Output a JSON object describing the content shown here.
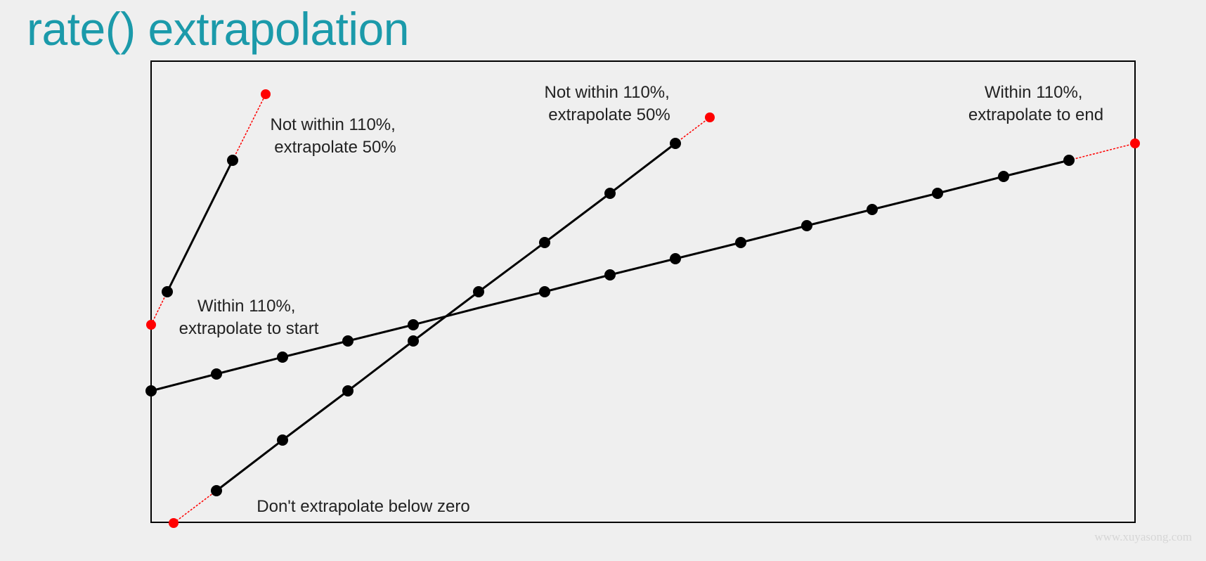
{
  "title": "rate() extrapolation",
  "watermark": "www.xuyasong.com",
  "colors": {
    "title": "#1b9aaa",
    "sample": "#000000",
    "extrapolated": "#ff0000",
    "frame": "#000000",
    "background": "#efefef"
  },
  "annotations": [
    {
      "id": "steep-end",
      "lines": [
        "Not within 110%,",
        "extrapolate 50%"
      ]
    },
    {
      "id": "mid-end",
      "lines": [
        "Not within 110%,",
        "extrapolate 50%"
      ]
    },
    {
      "id": "slow-end",
      "lines": [
        "Within 110%,",
        "extrapolate to end"
      ]
    },
    {
      "id": "steep-start",
      "lines": [
        "Within 110%,",
        "extrapolate to start"
      ]
    },
    {
      "id": "mid-start",
      "lines": [
        "Don't extrapolate below zero"
      ]
    }
  ]
}
